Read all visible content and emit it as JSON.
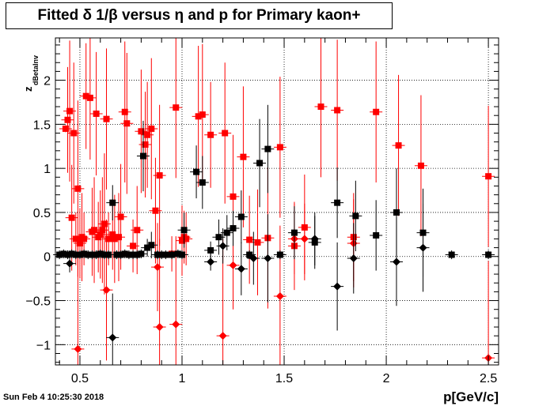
{
  "title": "Fitted δ 1/β versus η and p for Primary kaon+",
  "timestamp": "Sun Feb  4 10:25:30 2018",
  "chart_data": {
    "type": "scatter",
    "title": "Fitted δ 1/β versus η and p for Primary kaon+",
    "xlabel": "p[GeV/c]",
    "ylabel": "z_dBetaInv",
    "xlim": [
      0.38,
      2.55
    ],
    "ylim": [
      -1.23,
      2.48
    ],
    "x_ticks": [
      0.5,
      1,
      1.5,
      2,
      2.5
    ],
    "x_tick_labels": [
      "0.5",
      "1",
      "1.5",
      "2",
      "2.5"
    ],
    "y_ticks": [
      -1,
      -0.5,
      0,
      0.5,
      1,
      1.5,
      2
    ],
    "y_tick_labels": [
      "−1",
      "−0.5",
      "0",
      "0.5",
      "1",
      "1.5",
      "2"
    ],
    "grid": true,
    "series": [
      {
        "marker": "square",
        "color": "#ff0000",
        "points": [
          [
            0.43,
            1.45,
            0.04
          ],
          [
            0.44,
            1.55,
            0.6
          ],
          [
            0.45,
            1.65,
            0.8
          ],
          [
            0.46,
            0.44,
            0.6
          ],
          [
            0.47,
            1.4,
            0.8
          ],
          [
            0.48,
            0.2,
            0.3
          ],
          [
            0.49,
            0.77,
            1.0
          ],
          [
            0.5,
            0.15,
            0.4
          ],
          [
            0.51,
            0.22,
            0.5
          ],
          [
            0.52,
            0.2,
            0.3
          ],
          [
            0.53,
            1.82,
            0.6
          ],
          [
            0.55,
            1.8,
            0.7
          ],
          [
            0.56,
            0.28,
            0.5
          ],
          [
            0.57,
            0.3,
            0.6
          ],
          [
            0.58,
            1.62,
            0.7
          ],
          [
            0.59,
            0.22,
            0.4
          ],
          [
            0.6,
            0.25,
            0.5
          ],
          [
            0.61,
            0.3,
            0.6
          ],
          [
            0.62,
            0.37,
            0.8
          ],
          [
            0.63,
            1.56,
            0.8
          ],
          [
            0.64,
            0.2,
            0.3
          ],
          [
            0.66,
            0.25,
            0.4
          ],
          [
            0.67,
            0.2,
            0.5
          ],
          [
            0.69,
            0.22,
            0.5
          ],
          [
            0.7,
            0.45,
            0.6
          ],
          [
            0.72,
            1.64,
            0.8
          ],
          [
            0.73,
            1.51,
            0.8
          ],
          [
            0.76,
            0.12,
            0.3
          ],
          [
            0.78,
            0.3,
            0.5
          ],
          [
            0.8,
            1.42,
            0.7
          ],
          [
            0.82,
            1.27,
            0.6
          ],
          [
            0.83,
            1.38,
            0.6
          ],
          [
            0.85,
            1.45,
            0.8
          ],
          [
            0.87,
            0.52,
            0.6
          ],
          [
            0.89,
            0.92,
            0.8
          ],
          [
            0.95,
            0.03,
            0.2
          ],
          [
            0.97,
            1.69,
            0.8
          ],
          [
            1.0,
            0.18,
            0.4
          ],
          [
            1.01,
            0.22,
            0.3
          ],
          [
            1.02,
            0.2,
            0.3
          ],
          [
            1.08,
            1.59,
            0.8
          ],
          [
            1.1,
            1.61,
            0.8
          ],
          [
            1.14,
            1.38,
            0.6
          ],
          [
            1.21,
            1.4,
            0.8
          ],
          [
            1.25,
            0.68,
            0.7
          ],
          [
            1.3,
            1.13,
            0.8
          ],
          [
            1.33,
            0.19,
            0.5
          ],
          [
            1.37,
            0.16,
            0.6
          ],
          [
            1.42,
            0.21,
            0.8
          ],
          [
            1.48,
            1.24,
            0.8
          ],
          [
            1.55,
            0.12,
            0.5
          ],
          [
            1.6,
            0.33,
            0.6
          ],
          [
            1.68,
            1.7,
            0.8
          ],
          [
            1.76,
            1.66,
            0.8
          ],
          [
            1.84,
            0.22,
            0.5
          ],
          [
            1.95,
            1.64,
            0.8
          ],
          [
            2.06,
            1.26,
            0.8
          ],
          [
            2.17,
            1.03,
            0.8
          ],
          [
            2.5,
            0.91,
            0.8
          ]
        ]
      },
      {
        "marker": "diamond",
        "color": "#ff0000",
        "points": [
          [
            0.49,
            -1.05,
            1.2
          ],
          [
            0.63,
            -0.38,
            0.8
          ],
          [
            0.88,
            -0.12,
            0.5
          ],
          [
            0.89,
            -0.8,
            1.0
          ],
          [
            0.97,
            -0.77,
            1.0
          ],
          [
            1.2,
            -0.9,
            1.1
          ],
          [
            1.25,
            -0.1,
            0.5
          ],
          [
            1.48,
            -0.45,
            0.8
          ],
          [
            1.55,
            0.2,
            0.4
          ],
          [
            1.6,
            0.2,
            0.4
          ],
          [
            1.84,
            0.15,
            0.5
          ],
          [
            2.5,
            -1.15,
            1.1
          ]
        ]
      },
      {
        "marker": "square",
        "color": "#000000",
        "points": [
          [
            0.4,
            0.02,
            0.05
          ],
          [
            0.42,
            0.03,
            0.05
          ],
          [
            0.44,
            0.02,
            0.05
          ],
          [
            0.46,
            0.03,
            0.05
          ],
          [
            0.48,
            0.02,
            0.05
          ],
          [
            0.5,
            0.02,
            0.05
          ],
          [
            0.52,
            0.03,
            0.05
          ],
          [
            0.54,
            0.02,
            0.05
          ],
          [
            0.56,
            0.02,
            0.05
          ],
          [
            0.58,
            0.02,
            0.05
          ],
          [
            0.6,
            0.03,
            0.05
          ],
          [
            0.62,
            0.02,
            0.05
          ],
          [
            0.64,
            0.02,
            0.05
          ],
          [
            0.66,
            0.61,
            0.2
          ],
          [
            0.68,
            0.02,
            0.05
          ],
          [
            0.7,
            0.02,
            0.05
          ],
          [
            0.72,
            0.03,
            0.05
          ],
          [
            0.74,
            0.02,
            0.05
          ],
          [
            0.76,
            0.02,
            0.05
          ],
          [
            0.78,
            0.02,
            0.05
          ],
          [
            0.8,
            0.03,
            0.05
          ],
          [
            0.81,
            1.14,
            0.4
          ],
          [
            0.83,
            0.1,
            0.1
          ],
          [
            0.85,
            0.13,
            0.15
          ],
          [
            0.88,
            0.02,
            0.05
          ],
          [
            0.9,
            0.02,
            0.05
          ],
          [
            0.92,
            0.02,
            0.05
          ],
          [
            0.95,
            0.02,
            0.05
          ],
          [
            0.98,
            0.03,
            0.05
          ],
          [
            1.0,
            0.02,
            0.05
          ],
          [
            1.01,
            0.3,
            0.2
          ],
          [
            1.07,
            0.96,
            0.3
          ],
          [
            1.1,
            0.84,
            0.3
          ],
          [
            1.14,
            0.07,
            0.1
          ],
          [
            1.18,
            0.22,
            0.2
          ],
          [
            1.22,
            0.27,
            0.2
          ],
          [
            1.25,
            0.32,
            0.2
          ],
          [
            1.29,
            0.45,
            0.3
          ],
          [
            1.33,
            0.02,
            0.05
          ],
          [
            1.38,
            1.06,
            0.5
          ],
          [
            1.42,
            1.22,
            0.5
          ],
          [
            1.48,
            0.02,
            0.05
          ],
          [
            1.55,
            0.27,
            0.3
          ],
          [
            1.65,
            0.16,
            0.3
          ],
          [
            1.76,
            0.61,
            0.4
          ],
          [
            1.85,
            0.46,
            0.4
          ],
          [
            1.95,
            0.24,
            0.4
          ],
          [
            2.05,
            0.5,
            0.5
          ],
          [
            2.18,
            0.27,
            0.5
          ],
          [
            2.32,
            0.02,
            0.05
          ],
          [
            2.5,
            0.02,
            0.05
          ]
        ]
      },
      {
        "marker": "diamond",
        "color": "#000000",
        "points": [
          [
            0.45,
            -0.08,
            0.1
          ],
          [
            0.66,
            -0.92,
            0.5
          ],
          [
            0.88,
            0.02,
            0.05
          ],
          [
            1.14,
            -0.06,
            0.1
          ],
          [
            1.2,
            0.12,
            0.2
          ],
          [
            1.29,
            -0.14,
            0.3
          ],
          [
            1.35,
            -0.02,
            0.3
          ],
          [
            1.42,
            -0.02,
            0.5
          ],
          [
            1.65,
            0.2,
            0.3
          ],
          [
            1.76,
            -0.34,
            0.5
          ],
          [
            1.84,
            -0.02,
            0.4
          ],
          [
            2.05,
            -0.06,
            0.5
          ],
          [
            2.18,
            0.1,
            0.5
          ]
        ]
      }
    ]
  }
}
